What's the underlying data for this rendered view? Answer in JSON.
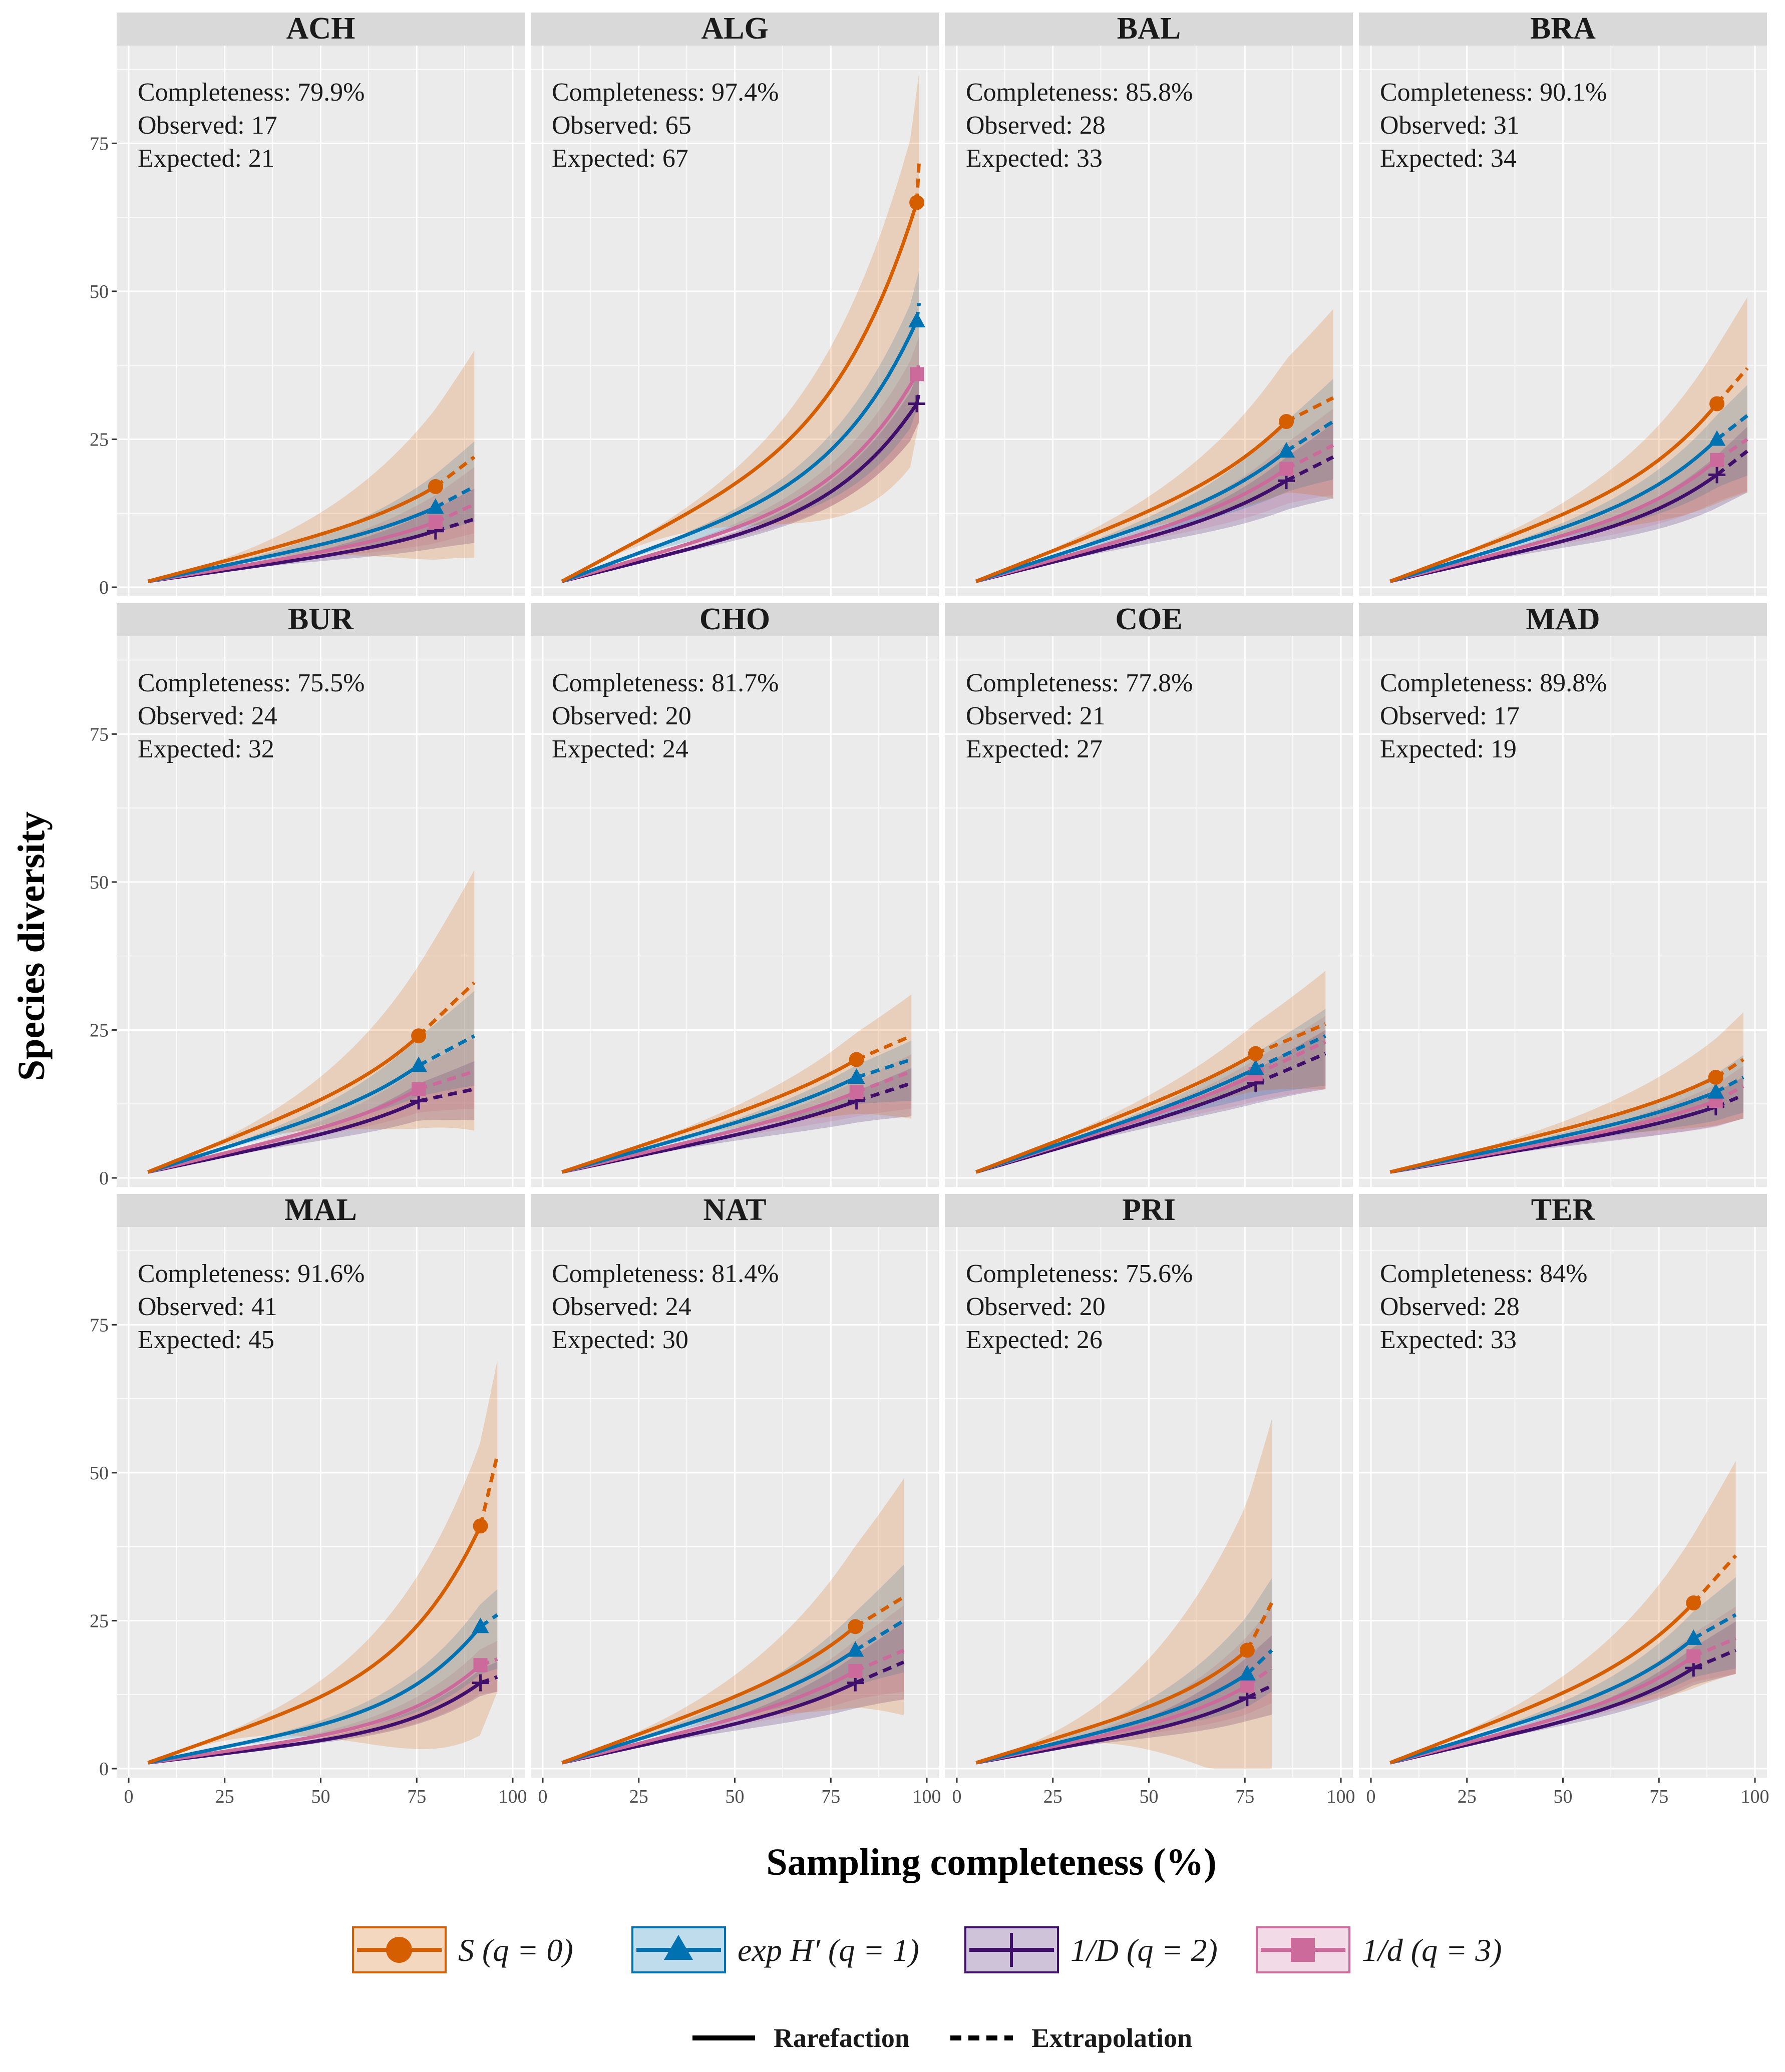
{
  "figure": {
    "ylabel": "Species diversity",
    "xlabel": "Sampling completeness (%)"
  },
  "colors": {
    "q0": "#D55E00",
    "q1": "#0072B2",
    "q2": "#3F0F6B",
    "q3": "#CC6A9C",
    "panel_bg": "#EBEBEB",
    "strip_bg": "#D9D9D9",
    "grid": "#FFFFFF"
  },
  "legend": {
    "series": [
      {
        "key": "q0",
        "label": "S (q = 0)",
        "marker": "circle"
      },
      {
        "key": "q1",
        "label": "exp H′ (q = 1)",
        "marker": "triangle"
      },
      {
        "key": "q2",
        "label": "1/D (q = 2)",
        "marker": "cross"
      },
      {
        "key": "q3",
        "label": "1/d (q = 3)",
        "marker": "square"
      }
    ],
    "linetypes": [
      {
        "key": "solid",
        "label": "Rarefaction"
      },
      {
        "key": "dashed",
        "label": "Extrapolation"
      }
    ]
  },
  "chart_data": {
    "type": "line",
    "xlim": [
      0,
      100
    ],
    "ylim": [
      0,
      90
    ],
    "xticks": [
      0,
      25,
      50,
      75,
      100
    ],
    "yticks": [
      0,
      25,
      50,
      75
    ],
    "x_start": 5,
    "y_start": 1,
    "panels": [
      {
        "site": "ACH",
        "info": [
          "Completeness: 79.9%",
          "Observed: 17",
          "Expected: 21"
        ],
        "x_ref": 79.9,
        "x_end": 90,
        "curvature": 1.5,
        "series": {
          "q0": [
            17,
            22
          ],
          "q1": [
            13.5,
            17
          ],
          "q2": [
            9.5,
            11.5
          ],
          "q3": [
            11,
            14
          ]
        },
        "band_max": 40,
        "band_min": 5
      },
      {
        "site": "ALG",
        "info": [
          "Completeness: 97.4%",
          "Observed: 65",
          "Expected: 67"
        ],
        "x_ref": 97.4,
        "x_end": 98,
        "curvature": 3.0,
        "series": {
          "q0": [
            65,
            72
          ],
          "q1": [
            45,
            48
          ],
          "q2": [
            31,
            33
          ],
          "q3": [
            36,
            38
          ]
        },
        "band_max": 87,
        "band_min": 28
      },
      {
        "site": "BAL",
        "info": [
          "Completeness: 85.8%",
          "Observed: 28",
          "Expected: 33"
        ],
        "x_ref": 85.8,
        "x_end": 98,
        "curvature": 1.6,
        "series": {
          "q0": [
            28,
            32
          ],
          "q1": [
            23,
            28
          ],
          "q2": [
            18,
            22
          ],
          "q3": [
            20,
            24
          ]
        },
        "band_max": 47,
        "band_min": 15
      },
      {
        "site": "BRA",
        "info": [
          "Completeness: 90.1%",
          "Observed: 31",
          "Expected: 34"
        ],
        "x_ref": 90.1,
        "x_end": 98,
        "curvature": 1.9,
        "series": {
          "q0": [
            31,
            37
          ],
          "q1": [
            25,
            29
          ],
          "q2": [
            19,
            23
          ],
          "q3": [
            21.5,
            25
          ]
        },
        "band_max": 49,
        "band_min": 16
      },
      {
        "site": "BUR",
        "info": [
          "Completeness: 75.5%",
          "Observed: 24",
          "Expected: 32"
        ],
        "x_ref": 75.5,
        "x_end": 90,
        "curvature": 1.5,
        "series": {
          "q0": [
            24,
            33
          ],
          "q1": [
            19,
            24
          ],
          "q2": [
            13,
            15
          ],
          "q3": [
            15,
            18
          ]
        },
        "band_max": 52,
        "band_min": 8
      },
      {
        "site": "CHO",
        "info": [
          "Completeness: 81.7%",
          "Observed: 20",
          "Expected: 24"
        ],
        "x_ref": 81.7,
        "x_end": 96,
        "curvature": 1.3,
        "series": {
          "q0": [
            20,
            24
          ],
          "q1": [
            17,
            20
          ],
          "q2": [
            13,
            16
          ],
          "q3": [
            14.5,
            18
          ]
        },
        "band_max": 31,
        "band_min": 10
      },
      {
        "site": "COE",
        "info": [
          "Completeness: 77.8%",
          "Observed: 21",
          "Expected: 27"
        ],
        "x_ref": 77.8,
        "x_end": 96,
        "curvature": 1.2,
        "series": {
          "q0": [
            21,
            26
          ],
          "q1": [
            18.5,
            24
          ],
          "q2": [
            16,
            21
          ],
          "q3": [
            17.5,
            23
          ]
        },
        "band_max": 35,
        "band_min": 15
      },
      {
        "site": "MAD",
        "info": [
          "Completeness: 89.8%",
          "Observed: 17",
          "Expected: 19"
        ],
        "x_ref": 89.8,
        "x_end": 97,
        "curvature": 1.4,
        "series": {
          "q0": [
            17,
            20
          ],
          "q1": [
            14.5,
            17
          ],
          "q2": [
            12,
            14
          ],
          "q3": [
            13,
            15.5
          ]
        },
        "band_max": 28,
        "band_min": 10
      },
      {
        "site": "MAL",
        "info": [
          "Completeness: 91.6%",
          "Observed: 41",
          "Expected: 45"
        ],
        "x_ref": 91.6,
        "x_end": 96,
        "curvature": 3.0,
        "series": {
          "q0": [
            41,
            53
          ],
          "q1": [
            24,
            26
          ],
          "q2": [
            14.5,
            15.5
          ],
          "q3": [
            17.5,
            18.5
          ]
        },
        "band_max": 69,
        "band_min": 13
      },
      {
        "site": "NAT",
        "info": [
          "Completeness: 81.4%",
          "Observed: 24",
          "Expected: 30"
        ],
        "x_ref": 81.4,
        "x_end": 94,
        "curvature": 1.5,
        "series": {
          "q0": [
            24,
            29
          ],
          "q1": [
            20,
            25
          ],
          "q2": [
            14.5,
            18
          ],
          "q3": [
            16.5,
            20
          ]
        },
        "band_max": 49,
        "band_min": 9
      },
      {
        "site": "PRI",
        "info": [
          "Completeness: 75.6%",
          "Observed: 20",
          "Expected: 26"
        ],
        "x_ref": 75.6,
        "x_end": 82,
        "curvature": 1.7,
        "series": {
          "q0": [
            20,
            28
          ],
          "q1": [
            16,
            20
          ],
          "q2": [
            12,
            14
          ],
          "q3": [
            14,
            17
          ]
        },
        "band_max": 59,
        "band_min": 0
      },
      {
        "site": "TER",
        "info": [
          "Completeness: 84%",
          "Observed: 28",
          "Expected: 33"
        ],
        "x_ref": 84,
        "x_end": 95,
        "curvature": 1.7,
        "series": {
          "q0": [
            28,
            36
          ],
          "q1": [
            22,
            26
          ],
          "q2": [
            17,
            20
          ],
          "q3": [
            19,
            22
          ]
        },
        "band_max": 52,
        "band_min": 16
      }
    ]
  }
}
